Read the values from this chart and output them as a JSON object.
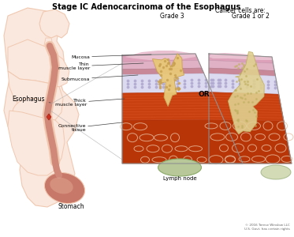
{
  "title": "Stage IC Adenocarcinoma of the Esophagus",
  "subtitle": "Cancer cells are:",
  "grade3_label": "Grade 3",
  "grade12_label": "Grade 1 or 2",
  "or_label": "OR",
  "layer_labels": [
    "Mucosa",
    "Thin\nmuscle layer",
    "Submucosa",
    "Thick\nmuscle layer",
    "Connective\ntissue"
  ],
  "other_labels": [
    "Esophagus",
    "Stomach",
    "Lymph node"
  ],
  "bg_color": "#ffffff",
  "skin_light": "#fae8de",
  "skin_mid": "#f0c8b0",
  "skin_dark": "#e8a888",
  "esoph_color": "#d08878",
  "stomach_color": "#c87868",
  "mucosa_color": "#e8b8c8",
  "mucosa_top_color": "#d4a0b8",
  "thin_muscle_color": "#c890a0",
  "submucosa_color": "#dcd8ec",
  "submucosa_dot_color": "#b8b0d8",
  "thick_muscle_color": "#c84010",
  "thick_muscle_stripe": "#e05020",
  "thick_muscle_light": "#d04818",
  "connective_color": "#b83808",
  "connective_cell_color": "#c04010",
  "connective_white": "#e8c8b0",
  "lymph_color": "#b8c898",
  "cancer3_color": "#e8c878",
  "cancer3_edge": "#c8a050",
  "cancer12_color": "#e0d090",
  "cancer12_edge": "#c0b060",
  "border_color": "#909090",
  "arrow_color": "#404040",
  "text_color": "#000000",
  "copyright": "© 2016 Terese Winslow LLC\nU.S. Govt. has certain rights"
}
